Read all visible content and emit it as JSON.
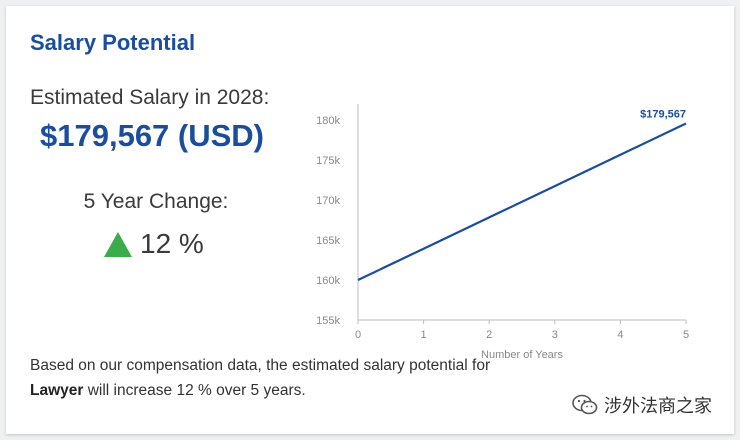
{
  "card": {
    "title": "Salary Potential",
    "estimated_label": "Estimated Salary in 2028:",
    "estimated_value": "$179,567 (USD)",
    "change_label": "5 Year Change:",
    "change_value": "12 %",
    "description_prefix": "Based on our compensation data, the estimated salary potential for ",
    "description_role": "Lawyer",
    "description_suffix": " will increase 12 % over 5 years."
  },
  "watermark": {
    "text": "涉外法商之家",
    "icon": "wechat-icon"
  },
  "colors": {
    "accent": "#1a4d9c",
    "up": "#3cab4c"
  },
  "chart_data": {
    "type": "line",
    "x": [
      0,
      1,
      2,
      3,
      4,
      5
    ],
    "series": [
      {
        "values": [
          160000,
          163913,
          167827,
          171740,
          175654,
          179567
        ]
      }
    ],
    "xlabel": "Number of Years",
    "ylabel": "",
    "xlim": [
      0,
      5
    ],
    "ylim": [
      155000,
      182000
    ],
    "x_ticks": [
      0,
      1,
      2,
      3,
      4,
      5
    ],
    "y_ticks": [
      155000,
      160000,
      165000,
      170000,
      175000,
      180000
    ],
    "y_tick_labels": [
      "155k",
      "160k",
      "165k",
      "170k",
      "175k",
      "180k"
    ],
    "end_label": "$179,567",
    "line_color": "#1a4d9c"
  }
}
